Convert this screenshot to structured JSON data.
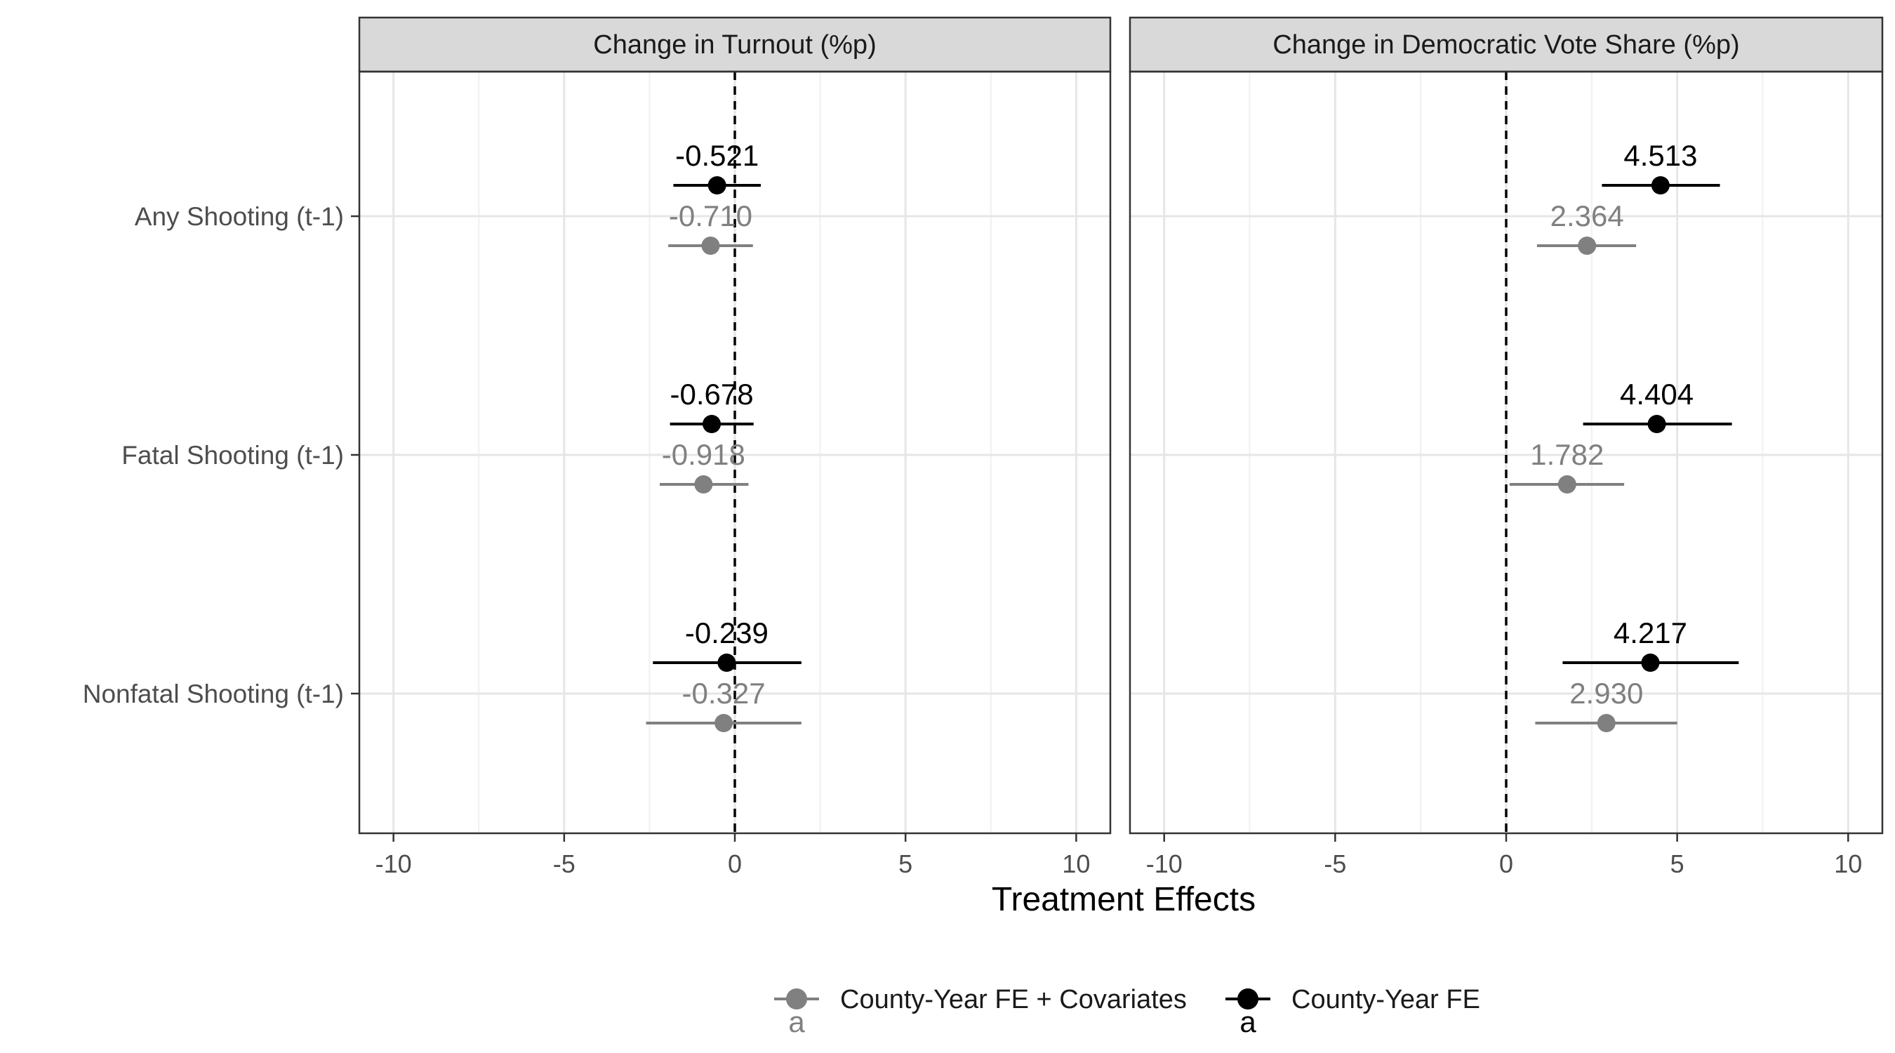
{
  "chart_data": {
    "type": "scatter",
    "subtype": "coefficient-plot-faceted",
    "xlabel": "Treatment Effects",
    "xlim": [
      -11,
      11
    ],
    "xticks": [
      -10,
      -5,
      0,
      5,
      10
    ],
    "xtick_labels": [
      "-10",
      "-5",
      "0",
      "5",
      "10"
    ],
    "reference_line_x": 0,
    "grid": true,
    "legend_position": "bottom",
    "categories": [
      "Any Shooting (t-1)",
      "Fatal Shooting (t-1)",
      "Nonfatal Shooting (t-1)"
    ],
    "legend": [
      {
        "name": "County-Year FE + Covariates",
        "key_label": "a",
        "color": "#808080"
      },
      {
        "name": "County-Year FE",
        "key_label": "a",
        "color": "#000000"
      }
    ],
    "panels": [
      {
        "title": "Change in Turnout (%p)",
        "series": [
          {
            "name": "County-Year FE",
            "color": "#000000",
            "points": [
              {
                "category": "Any Shooting (t-1)",
                "estimate": -0.521,
                "ci": [
                  -1.8,
                  0.76
                ],
                "label": "-0.521"
              },
              {
                "category": "Fatal Shooting (t-1)",
                "estimate": -0.678,
                "ci": [
                  -1.9,
                  0.55
                ],
                "label": "-0.678"
              },
              {
                "category": "Nonfatal Shooting (t-1)",
                "estimate": -0.239,
                "ci": [
                  -2.4,
                  1.95
                ],
                "label": "-0.239"
              }
            ]
          },
          {
            "name": "County-Year FE + Covariates",
            "color": "#808080",
            "points": [
              {
                "category": "Any Shooting (t-1)",
                "estimate": -0.71,
                "ci": [
                  -1.95,
                  0.53
                ],
                "label": "-0.710"
              },
              {
                "category": "Fatal Shooting (t-1)",
                "estimate": -0.918,
                "ci": [
                  -2.2,
                  0.4
                ],
                "label": "-0.918"
              },
              {
                "category": "Nonfatal Shooting (t-1)",
                "estimate": -0.327,
                "ci": [
                  -2.6,
                  1.95
                ],
                "label": "-0.327"
              }
            ]
          }
        ]
      },
      {
        "title": "Change in Democratic Vote Share (%p)",
        "series": [
          {
            "name": "County-Year FE",
            "color": "#000000",
            "points": [
              {
                "category": "Any Shooting (t-1)",
                "estimate": 4.513,
                "ci": [
                  2.8,
                  6.25
                ],
                "label": "4.513"
              },
              {
                "category": "Fatal Shooting (t-1)",
                "estimate": 4.404,
                "ci": [
                  2.25,
                  6.6
                ],
                "label": "4.404"
              },
              {
                "category": "Nonfatal Shooting (t-1)",
                "estimate": 4.217,
                "ci": [
                  1.65,
                  6.8
                ],
                "label": "4.217"
              }
            ]
          },
          {
            "name": "County-Year FE + Covariates",
            "color": "#808080",
            "points": [
              {
                "category": "Any Shooting (t-1)",
                "estimate": 2.364,
                "ci": [
                  0.9,
                  3.8
                ],
                "label": "2.364"
              },
              {
                "category": "Fatal Shooting (t-1)",
                "estimate": 1.782,
                "ci": [
                  0.1,
                  3.45
                ],
                "label": "1.782"
              },
              {
                "category": "Nonfatal Shooting (t-1)",
                "estimate": 2.93,
                "ci": [
                  0.85,
                  5.0
                ],
                "label": "2.930"
              }
            ]
          }
        ]
      }
    ]
  }
}
